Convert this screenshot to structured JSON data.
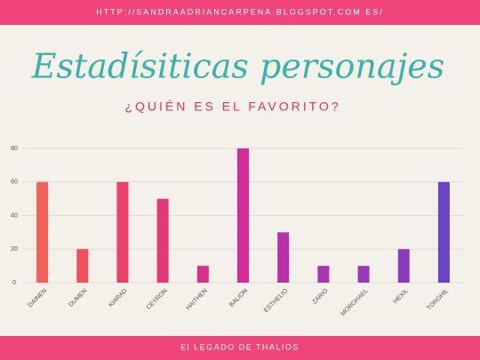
{
  "header": {
    "url": "HTTP://SANDRAADRIANCARPENA.BLOGSPOT.COM.ES/"
  },
  "footer": {
    "text": "El LEGADO DE THALIOS"
  },
  "chart_data": {
    "type": "bar",
    "title": "Estadísiticas personajes",
    "subtitle": "¿QUIÉN ES EL FAVORITO?",
    "categories": [
      "DAINEN",
      "DUMEN",
      "KIARAD",
      "CEYRON",
      "HAITHEN",
      "BALION",
      "ESTHELIO",
      "ZARIO",
      "MORGHAEL",
      "HEXIL",
      "TORGHIL"
    ],
    "values": [
      60,
      20,
      60,
      50,
      10,
      80,
      30,
      10,
      10,
      20,
      60
    ],
    "colors": [
      "#f4605a",
      "#f24f5f",
      "#ec3f6a",
      "#e43877",
      "#dc2f87",
      "#d52b98",
      "#b92fa7",
      "#a935b0",
      "#9a38b6",
      "#8a3cbd",
      "#6a43c6"
    ],
    "ylim": [
      0,
      80
    ],
    "yticks": [
      0,
      20,
      40,
      60,
      80
    ],
    "grid": true
  }
}
